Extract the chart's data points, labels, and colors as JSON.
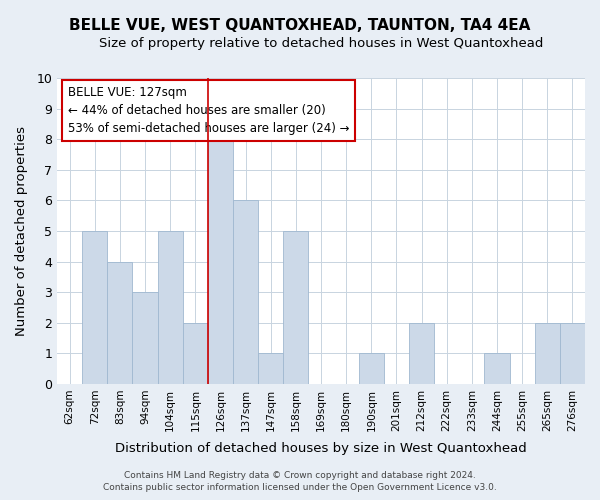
{
  "title": "BELLE VUE, WEST QUANTOXHEAD, TAUNTON, TA4 4EA",
  "subtitle": "Size of property relative to detached houses in West Quantoxhead",
  "xlabel": "Distribution of detached houses by size in West Quantoxhead",
  "ylabel": "Number of detached properties",
  "categories": [
    "62sqm",
    "72sqm",
    "83sqm",
    "94sqm",
    "104sqm",
    "115sqm",
    "126sqm",
    "137sqm",
    "147sqm",
    "158sqm",
    "169sqm",
    "180sqm",
    "190sqm",
    "201sqm",
    "212sqm",
    "222sqm",
    "233sqm",
    "244sqm",
    "255sqm",
    "265sqm",
    "276sqm"
  ],
  "values": [
    0,
    5,
    4,
    3,
    5,
    2,
    8,
    6,
    1,
    5,
    0,
    0,
    1,
    0,
    2,
    0,
    0,
    1,
    0,
    2,
    2
  ],
  "bar_color": "#ccd9e8",
  "bar_edge_color": "#a0b8d0",
  "highlight_index": 6,
  "highlight_line_color": "#cc0000",
  "annotation_text": "BELLE VUE: 127sqm\n← 44% of detached houses are smaller (20)\n53% of semi-detached houses are larger (24) →",
  "annotation_box_color": "#ffffff",
  "annotation_box_edge_color": "#cc0000",
  "ylim": [
    0,
    10
  ],
  "yticks": [
    0,
    1,
    2,
    3,
    4,
    5,
    6,
    7,
    8,
    9,
    10
  ],
  "footer1": "Contains HM Land Registry data © Crown copyright and database right 2024.",
  "footer2": "Contains public sector information licensed under the Open Government Licence v3.0.",
  "bg_color": "#e8eef5",
  "plot_bg_color": "#ffffff",
  "grid_color": "#c8d4e0"
}
